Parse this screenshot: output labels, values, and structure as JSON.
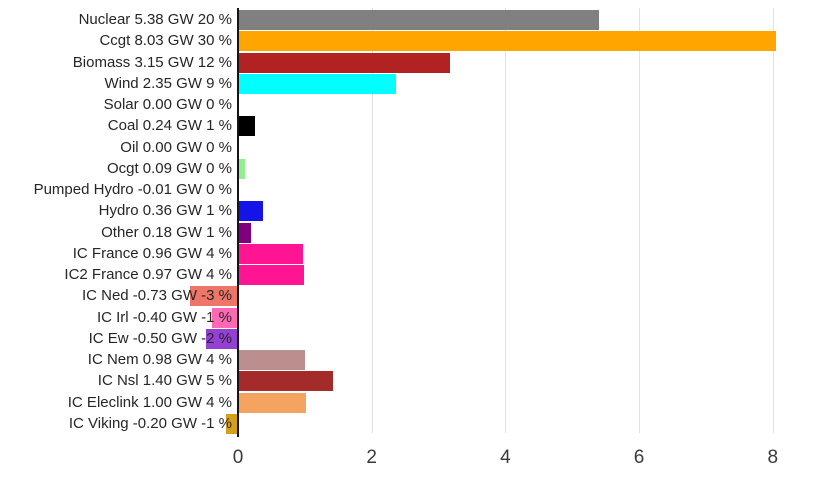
{
  "chart_data": {
    "type": "bar",
    "orientation": "horizontal",
    "title": "",
    "xlabel": "",
    "ylabel": "",
    "unit": "GW",
    "xlim": [
      -1.1,
      8.25
    ],
    "x_ticks": [
      0,
      2,
      4,
      6,
      8
    ],
    "x_tick_labels": [
      "0",
      "2",
      "4",
      "6",
      "8"
    ],
    "grid": "vertical-gridlines-at-ticks",
    "legend": "none",
    "axis_color": "#151515",
    "gridline_color": "#e2e2e2",
    "label_color": "#262626",
    "tick_color": "#3a3a3a",
    "rows": [
      {
        "name": "nuclear",
        "label": "Nuclear 5.38 GW 20 %",
        "value_gw": 5.38,
        "percent": 20,
        "color": "#808080"
      },
      {
        "name": "ccgt",
        "label": "Ccgt 8.03 GW 30 %",
        "value_gw": 8.03,
        "percent": 30,
        "color": "#FFA500"
      },
      {
        "name": "biomass",
        "label": "Biomass 3.15 GW 12 %",
        "value_gw": 3.15,
        "percent": 12,
        "color": "#B22222"
      },
      {
        "name": "wind",
        "label": "Wind 2.35 GW 9 %",
        "value_gw": 2.35,
        "percent": 9,
        "color": "#00FFFF"
      },
      {
        "name": "solar",
        "label": "Solar 0.00 GW 0 %",
        "value_gw": 0.0,
        "percent": 0,
        "color": null
      },
      {
        "name": "coal",
        "label": "Coal 0.24 GW 1 %",
        "value_gw": 0.24,
        "percent": 1,
        "color": "#000000"
      },
      {
        "name": "oil",
        "label": "Oil 0.00 GW 0 %",
        "value_gw": 0.0,
        "percent": 0,
        "color": null
      },
      {
        "name": "ocgt",
        "label": "Ocgt 0.09 GW 0 %",
        "value_gw": 0.09,
        "percent": 0,
        "color": "#90EE90"
      },
      {
        "name": "pumped-hydro",
        "label": "Pumped Hydro -0.01 GW 0 %",
        "value_gw": -0.01,
        "percent": 0,
        "color": null
      },
      {
        "name": "hydro",
        "label": "Hydro 0.36 GW 1 %",
        "value_gw": 0.36,
        "percent": 1,
        "color": "#1414E8"
      },
      {
        "name": "other",
        "label": "Other 0.18 GW 1 %",
        "value_gw": 0.18,
        "percent": 1,
        "color": "#800080"
      },
      {
        "name": "ic-france",
        "label": "IC France 0.96 GW 4 %",
        "value_gw": 0.96,
        "percent": 4,
        "color": "#FF1493"
      },
      {
        "name": "ic2-france",
        "label": "IC2 France 0.97 GW 4 %",
        "value_gw": 0.97,
        "percent": 4,
        "color": "#FF1493"
      },
      {
        "name": "ic-ned",
        "label": "IC Ned -0.73 GW -3 %",
        "value_gw": -0.73,
        "percent": -3,
        "color": "#ED7669"
      },
      {
        "name": "ic-irl",
        "label": "IC Irl -0.40 GW -1 %",
        "value_gw": -0.4,
        "percent": -1,
        "color": "#FF69B4"
      },
      {
        "name": "ic-ew",
        "label": "IC Ew -0.50 GW -2 %",
        "value_gw": -0.5,
        "percent": -2,
        "color": "#9440D3"
      },
      {
        "name": "ic-nem",
        "label": "IC Nem 0.98 GW 4 %",
        "value_gw": 0.98,
        "percent": 4,
        "color": "#BC8F8F"
      },
      {
        "name": "ic-nsl",
        "label": "IC Nsl 1.40 GW 5 %",
        "value_gw": 1.4,
        "percent": 5,
        "color": "#A52A2A"
      },
      {
        "name": "ic-eleclink",
        "label": "IC Eleclink 1.00 GW 4 %",
        "value_gw": 1.0,
        "percent": 4,
        "color": "#F4A460"
      },
      {
        "name": "ic-viking",
        "label": "IC Viking -0.20 GW -1 %",
        "value_gw": -0.2,
        "percent": -1,
        "color": "#D4A017"
      }
    ]
  }
}
